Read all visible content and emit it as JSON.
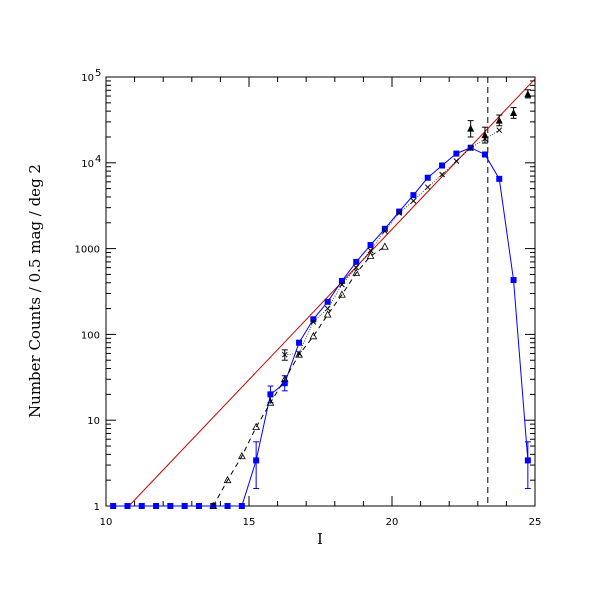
{
  "chart_data": {
    "type": "line",
    "xlabel": "I",
    "ylabel": "Number Counts / 0.5 mag / deg 2",
    "xlim": [
      10,
      25
    ],
    "ylim": [
      1,
      100000
    ],
    "yscale": "log",
    "x_ticks": [
      {
        "value": 10,
        "label": "10"
      },
      {
        "value": 15,
        "label": "15"
      },
      {
        "value": 20,
        "label": "20"
      },
      {
        "value": 25,
        "label": "25"
      }
    ],
    "y_ticks": [
      {
        "value": 1,
        "label": "1"
      },
      {
        "value": 10,
        "label": "10"
      },
      {
        "value": 100,
        "label": "100"
      },
      {
        "value": 1000,
        "label": "1000"
      },
      {
        "value": 10000,
        "label": "10",
        "exp": "4"
      },
      {
        "value": 100000,
        "label": "10",
        "exp": "5"
      }
    ],
    "vline_x": 23.35,
    "series": [
      {
        "style": "model-line",
        "color": "#cc0000",
        "x": [
          10.8,
          25
        ],
        "y": [
          1,
          95000
        ]
      },
      {
        "style": "blue-squares",
        "color": "#0000ff",
        "x": [
          10.25,
          10.75,
          11.25,
          11.75,
          12.25,
          12.75,
          13.25,
          13.75,
          14.25,
          14.75,
          15.25,
          15.75,
          16.25,
          16.75,
          17.25,
          17.75,
          18.25,
          18.75,
          19.25,
          19.75,
          20.25,
          20.75,
          21.25,
          21.75,
          22.25,
          22.75,
          23.25,
          23.75,
          24.25,
          24.75
        ],
        "y": [
          1,
          1,
          1,
          1,
          1,
          1,
          1,
          1,
          1,
          1,
          3.4,
          20,
          27,
          80,
          150,
          240,
          420,
          700,
          1100,
          1700,
          2700,
          4200,
          6700,
          9300,
          12800,
          15000,
          12500,
          6500,
          430,
          3.4
        ],
        "err_lo": [
          0,
          0,
          0,
          0,
          0,
          0,
          0,
          0,
          0,
          0,
          1.8,
          4,
          5,
          0,
          0,
          0,
          0,
          0,
          0,
          0,
          0,
          0,
          0,
          0,
          0,
          0,
          0,
          0,
          0,
          1.8
        ],
        "err_hi": [
          0,
          0,
          0,
          0,
          0,
          0,
          0,
          0,
          0,
          0,
          2.2,
          5,
          6,
          0,
          0,
          0,
          0,
          0,
          0,
          0,
          0,
          0,
          0,
          0,
          0,
          0,
          0,
          0,
          0,
          2.2
        ]
      },
      {
        "style": "open-triangles-dashed",
        "color": "#000000",
        "x": [
          13.75,
          14.25,
          14.75,
          15.25,
          15.75,
          16.25,
          16.75,
          17.25,
          17.75,
          18.25,
          18.75,
          19.25,
          19.75
        ],
        "y": [
          1,
          2,
          3.8,
          8.3,
          16,
          30,
          58,
          95,
          170,
          290,
          520,
          820,
          1050
        ]
      },
      {
        "style": "crosses",
        "color": "#000000",
        "x": [
          16.25,
          16.75,
          17.25,
          17.75,
          18.25,
          18.75,
          19.25,
          19.75,
          20.25,
          20.75,
          21.25,
          21.75,
          22.25,
          22.75,
          23.25,
          23.75
        ],
        "y": [
          58,
          60,
          140,
          200,
          380,
          600,
          950,
          1600,
          2600,
          3600,
          5200,
          7300,
          10500,
          14800,
          19000,
          24000
        ],
        "err_lo": [
          8,
          0,
          0,
          0,
          0,
          0,
          0,
          0,
          0,
          0,
          0,
          0,
          0,
          0,
          0,
          0
        ],
        "err_hi": [
          8,
          0,
          0,
          0,
          0,
          0,
          0,
          0,
          0,
          0,
          0,
          0,
          0,
          0,
          0,
          0
        ]
      },
      {
        "style": "filled-triangles",
        "color": "#000000",
        "x": [
          22.75,
          23.25,
          23.75,
          24.25,
          24.75
        ],
        "y": [
          25000,
          21000,
          31000,
          38000,
          63000
        ],
        "err_lo": [
          5000,
          4000,
          4000,
          5000,
          6000
        ],
        "err_hi": [
          6000,
          5000,
          5000,
          6000,
          8000
        ]
      }
    ]
  }
}
